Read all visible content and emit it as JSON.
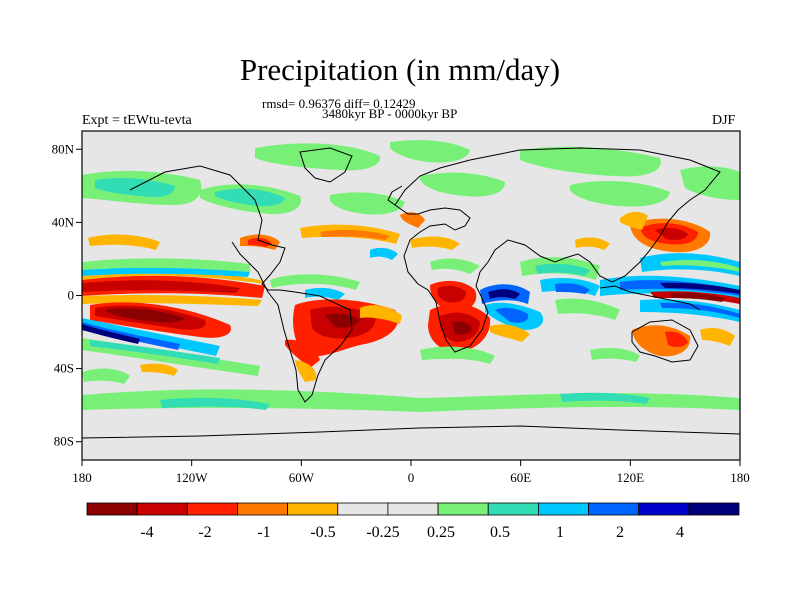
{
  "title": "Precipitation (in mm/day)",
  "stats": "rmsd= 0.96376 diff= 0.12429",
  "period": "3480kyr BP - 0000kyr BP",
  "experiment": "Expt = tEWtu-tevta",
  "season": "DJF",
  "map": {
    "projection": "cylindrical equidistant",
    "lon_range": [
      -180,
      180
    ],
    "lat_range": [
      -90,
      90
    ],
    "background_color": "#e6e6e6",
    "y_ticks": [
      {
        "label": "80N",
        "lat": 80
      },
      {
        "label": "40N",
        "lat": 40
      },
      {
        "label": "0",
        "lat": 0
      },
      {
        "label": "40S",
        "lat": -40
      },
      {
        "label": "80S",
        "lat": -80
      }
    ],
    "x_ticks": [
      {
        "label": "180",
        "lon": -180
      },
      {
        "label": "120W",
        "lon": -120
      },
      {
        "label": "60W",
        "lon": -60
      },
      {
        "label": "0",
        "lon": 0
      },
      {
        "label": "60E",
        "lon": 60
      },
      {
        "label": "120E",
        "lon": 120
      },
      {
        "label": "180",
        "lon": 180
      }
    ]
  },
  "colorbar": {
    "colors": [
      "#8b0000",
      "#c80000",
      "#ff2000",
      "#ff7800",
      "#ffb400",
      "#e6e6e6",
      "#e6e6e6",
      "#78f078",
      "#32dcb4",
      "#00c8ff",
      "#0064ff",
      "#0000cd",
      "#00007d"
    ],
    "labels": [
      "-4",
      "-2",
      "-1",
      "-0.5",
      "-0.25",
      "0.25",
      "0.5",
      "1",
      "2",
      "4"
    ]
  }
}
